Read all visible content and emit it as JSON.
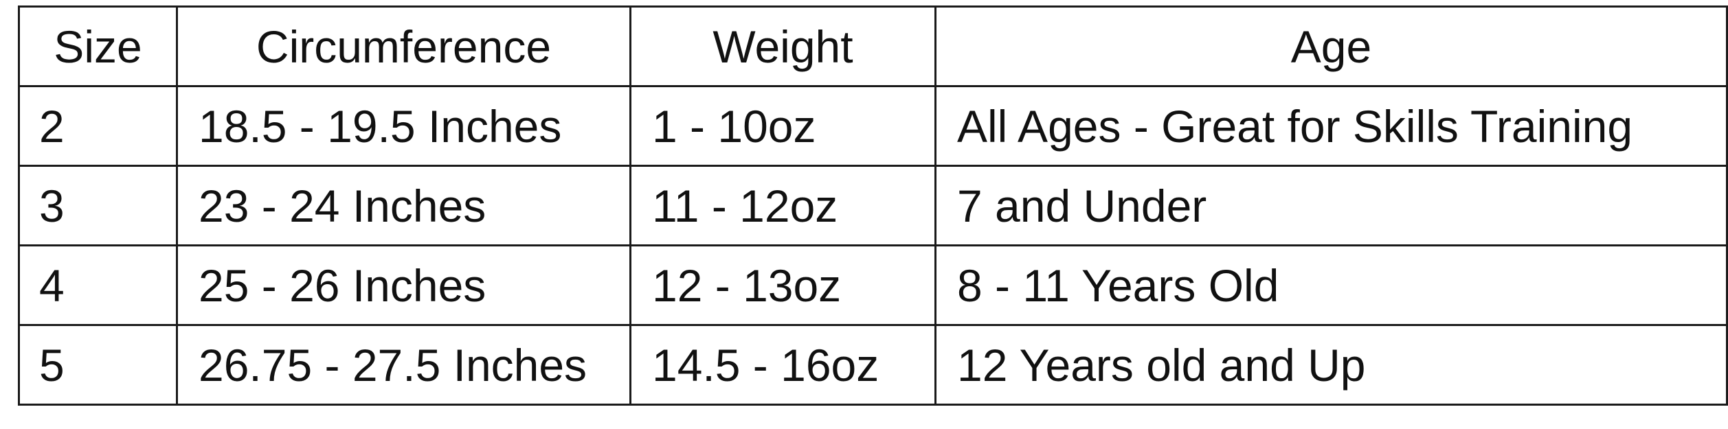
{
  "table": {
    "headers": {
      "size": "Size",
      "circumference": "Circumference",
      "weight": "Weight",
      "age": "Age"
    },
    "rows": [
      {
        "size": "2",
        "circumference": "18.5 - 19.5 Inches",
        "weight": "1 - 10oz",
        "age": "All Ages - Great for Skills Training"
      },
      {
        "size": "3",
        "circumference": "23 - 24 Inches",
        "weight": "11 - 12oz",
        "age": "7 and Under"
      },
      {
        "size": "4",
        "circumference": "25 - 26 Inches",
        "weight": "12 - 13oz",
        "age": "8 - 11 Years Old"
      },
      {
        "size": "5",
        "circumference": "26.75 - 27.5 Inches",
        "weight": "14.5 - 16oz",
        "age": "12 Years old and Up"
      }
    ]
  }
}
